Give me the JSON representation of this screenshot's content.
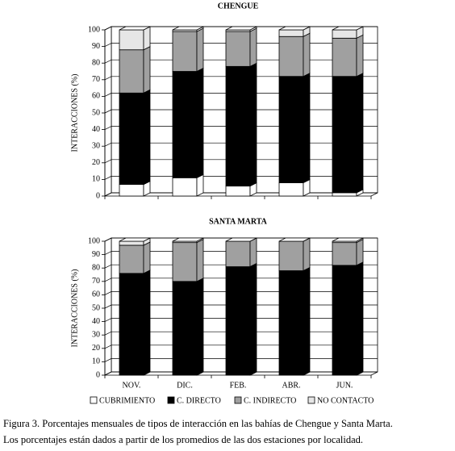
{
  "chart_data": [
    {
      "type": "bar",
      "stacked": true,
      "title": "CHENGUE",
      "ylabel": "INTERACCIONES (%)",
      "categories": [
        null,
        null,
        null,
        null,
        null
      ],
      "series": [
        {
          "color": "#ffffff",
          "values": [
            7,
            11,
            6,
            8,
            2
          ]
        },
        {
          "color": "#000000",
          "values": [
            55,
            64,
            72,
            64,
            70
          ]
        },
        {
          "color": "#a0a0a0",
          "values": [
            26,
            24,
            21,
            24,
            23
          ]
        },
        {
          "color": "#e6e6e6",
          "values": [
            12,
            1,
            1,
            4,
            5
          ]
        }
      ],
      "ylim": [
        0,
        100
      ],
      "yticks": [
        0,
        10,
        20,
        30,
        40,
        50,
        60,
        70,
        80,
        90,
        100
      ],
      "grid": true
    },
    {
      "type": "bar",
      "stacked": true,
      "title": "SANTA MARTA",
      "ylabel": "INTERACCIONES (%)",
      "categories": [
        "NOV.",
        "DIC.",
        "FEB.",
        "ABR.",
        "JUN."
      ],
      "series": [
        {
          "name": "CUBRIMIENTO",
          "color": "#ffffff",
          "values": [
            0,
            0,
            0,
            0,
            0
          ]
        },
        {
          "name": "C. DIRECTO",
          "color": "#000000",
          "values": [
            76,
            70,
            81,
            78,
            82
          ]
        },
        {
          "name": "C. INDIRECTO",
          "color": "#a0a0a0",
          "values": [
            21,
            29,
            19,
            22,
            17
          ]
        },
        {
          "name": "NO CONTACTO",
          "color": "#e6e6e6",
          "values": [
            3,
            1,
            0,
            0,
            1
          ]
        }
      ],
      "ylim": [
        0,
        100
      ],
      "yticks": [
        0,
        10,
        20,
        30,
        40,
        50,
        60,
        70,
        80,
        90,
        100
      ],
      "grid": true
    }
  ],
  "caption": [
    "Figura 3.  Porcentajes mensuales de tipos de interacción en las bahías de Chengue y Santa Marta.",
    "Los porcentajes están dados a partir de los promedios de las dos estaciones por localidad."
  ]
}
